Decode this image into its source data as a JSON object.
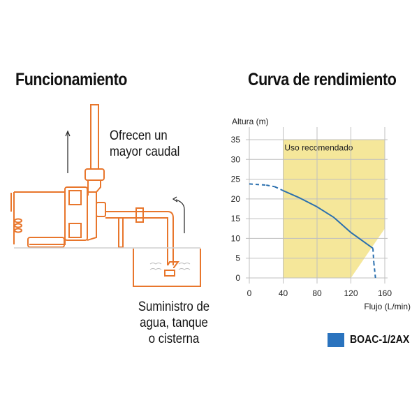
{
  "left_panel": {
    "title": "Funcionamiento",
    "caption_top": [
      "Ofrecen un",
      "mayor caudal"
    ],
    "caption_bottom": [
      "Suministro de",
      "agua, tanque",
      "o cisterna"
    ],
    "illustration": "water-pump-diagram",
    "line_color": "#E8762C"
  },
  "right_panel": {
    "title": "Curva de rendimiento"
  },
  "legend": {
    "label": "BOAC-1/2AX",
    "color": "#2A73BE"
  },
  "chart_data": {
    "type": "line",
    "title": "Curva de rendimiento",
    "xlabel": "Flujo (L/min)",
    "ylabel": "Altura (m)",
    "xlim": [
      0,
      160
    ],
    "ylim": [
      0,
      35
    ],
    "x_ticks": [
      0,
      40,
      80,
      120,
      160
    ],
    "y_ticks": [
      0,
      5,
      10,
      15,
      20,
      25,
      30,
      35
    ],
    "grid": true,
    "legend_position": "bottom-right",
    "annotations": [
      {
        "text": "Uso recomendado",
        "region": "x 40–160, y 0–35 minus lower-right triangle (120,0)-(160,12.5)",
        "color": "#F5E79A"
      }
    ],
    "series": [
      {
        "name": "BOAC-1/2AX",
        "color": "#2A6FAE",
        "points": [
          {
            "x": 0,
            "y": 23.8,
            "style": "dashed"
          },
          {
            "x": 20,
            "y": 23.5,
            "style": "dashed"
          },
          {
            "x": 30,
            "y": 23.1,
            "style": "dashed"
          },
          {
            "x": 40,
            "y": 22.1,
            "style": "solid"
          },
          {
            "x": 60,
            "y": 20.2,
            "style": "solid"
          },
          {
            "x": 80,
            "y": 18.0,
            "style": "solid"
          },
          {
            "x": 100,
            "y": 15.3,
            "style": "solid"
          },
          {
            "x": 120,
            "y": 11.5,
            "style": "solid"
          },
          {
            "x": 146,
            "y": 7.5,
            "style": "solid"
          },
          {
            "x": 147,
            "y": 4.0,
            "style": "dashed"
          },
          {
            "x": 149,
            "y": 0,
            "style": "dashed"
          }
        ]
      }
    ]
  }
}
